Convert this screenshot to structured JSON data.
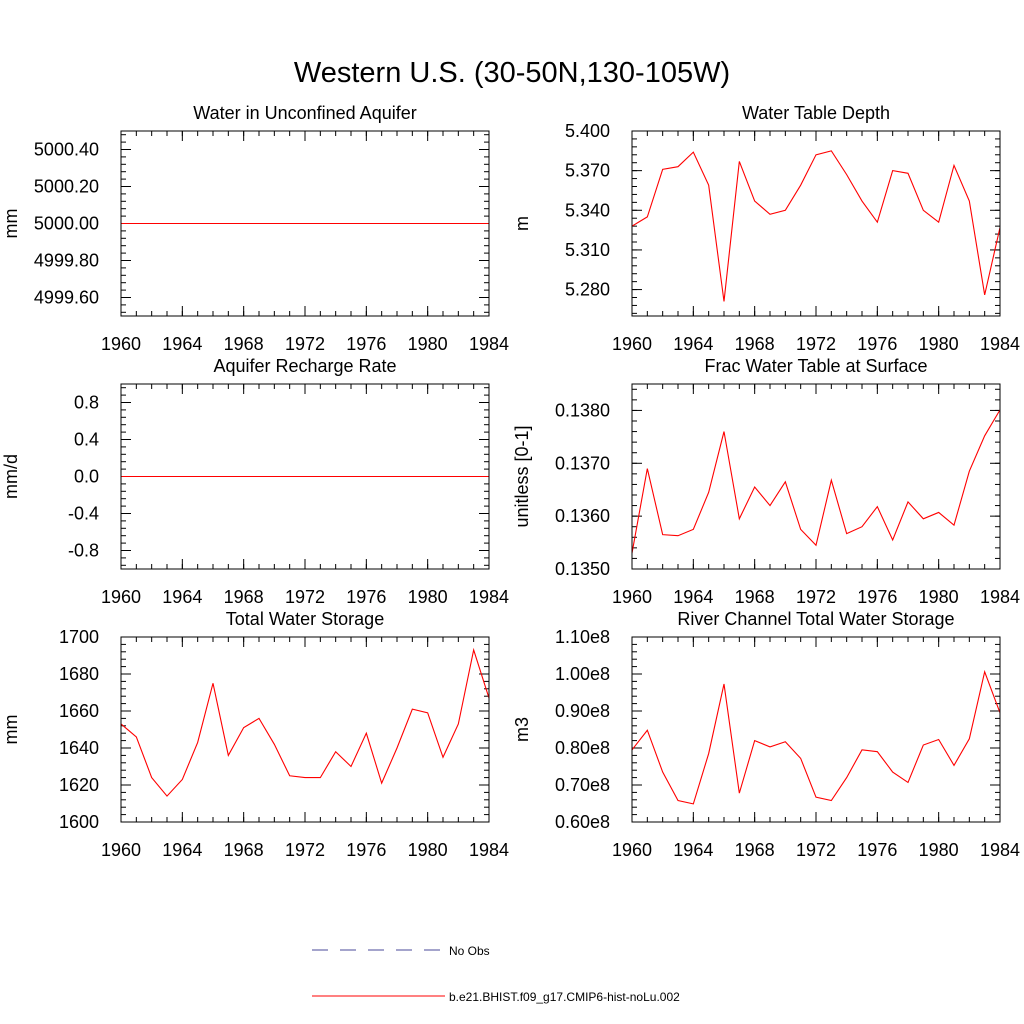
{
  "figure": {
    "title": "Western U.S. (30-50N,130-105W)"
  },
  "legend": {
    "entries": [
      {
        "label": "No Obs",
        "color": "#4a4a9a",
        "dash": true
      },
      {
        "label": "b.e21.BHIST.f09_g17.CMIP6-hist-noLu.002",
        "color": "#ff0000",
        "dash": false
      }
    ]
  },
  "chart_data": [
    {
      "type": "line",
      "title": "Water in Unconfined Aquifer",
      "ylabel": "mm",
      "xlim": [
        1960,
        1984
      ],
      "ylim": [
        4999.5,
        5000.5
      ],
      "xticks": [
        1960,
        1964,
        1968,
        1972,
        1976,
        1980,
        1984
      ],
      "yticks": [
        4999.6,
        4999.8,
        5000.0,
        5000.2,
        5000.4
      ],
      "ytick_labels": [
        "4999.60",
        "4999.80",
        "5000.00",
        "5000.20",
        "5000.40"
      ],
      "series": [
        {
          "color": "#ff0000",
          "x": [
            1960,
            1961,
            1962,
            1963,
            1964,
            1965,
            1966,
            1967,
            1968,
            1969,
            1970,
            1971,
            1972,
            1973,
            1974,
            1975,
            1976,
            1977,
            1978,
            1979,
            1980,
            1981,
            1982,
            1983,
            1984
          ],
          "values": [
            5000.0,
            5000.0,
            5000.0,
            5000.0,
            5000.0,
            5000.0,
            5000.0,
            5000.0,
            5000.0,
            5000.0,
            5000.0,
            5000.0,
            5000.0,
            5000.0,
            5000.0,
            5000.0,
            5000.0,
            5000.0,
            5000.0,
            5000.0,
            5000.0,
            5000.0,
            5000.0,
            5000.0,
            5000.0
          ]
        }
      ]
    },
    {
      "type": "line",
      "title": "Water Table Depth",
      "ylabel": "m",
      "xlim": [
        1960,
        1984
      ],
      "ylim": [
        5.26,
        5.4
      ],
      "xticks": [
        1960,
        1964,
        1968,
        1972,
        1976,
        1980,
        1984
      ],
      "yticks": [
        5.28,
        5.31,
        5.34,
        5.37,
        5.4
      ],
      "ytick_labels": [
        "5.280",
        "5.310",
        "5.340",
        "5.370",
        "5.400"
      ],
      "series": [
        {
          "color": "#ff0000",
          "x": [
            1960,
            1961,
            1962,
            1963,
            1964,
            1965,
            1966,
            1967,
            1968,
            1969,
            1970,
            1971,
            1972,
            1973,
            1974,
            1975,
            1976,
            1977,
            1978,
            1979,
            1980,
            1981,
            1982,
            1983,
            1984
          ],
          "values": [
            5.328,
            5.335,
            5.371,
            5.373,
            5.384,
            5.359,
            5.271,
            5.377,
            5.347,
            5.337,
            5.34,
            5.359,
            5.382,
            5.385,
            5.367,
            5.347,
            5.331,
            5.37,
            5.368,
            5.34,
            5.331,
            5.374,
            5.347,
            5.276,
            5.327
          ]
        }
      ]
    },
    {
      "type": "line",
      "title": "Aquifer Recharge Rate",
      "ylabel": "mm/d",
      "xlim": [
        1960,
        1984
      ],
      "ylim": [
        -1.0,
        1.0
      ],
      "xticks": [
        1960,
        1964,
        1968,
        1972,
        1976,
        1980,
        1984
      ],
      "yticks": [
        -0.8,
        -0.4,
        0.0,
        0.4,
        0.8
      ],
      "ytick_labels": [
        "-0.8",
        "-0.4",
        "0.0",
        "0.4",
        "0.8"
      ],
      "series": [
        {
          "color": "#ff0000",
          "x": [
            1960,
            1961,
            1962,
            1963,
            1964,
            1965,
            1966,
            1967,
            1968,
            1969,
            1970,
            1971,
            1972,
            1973,
            1974,
            1975,
            1976,
            1977,
            1978,
            1979,
            1980,
            1981,
            1982,
            1983,
            1984
          ],
          "values": [
            0,
            0,
            0,
            0,
            0,
            0,
            0,
            0,
            0,
            0,
            0,
            0,
            0,
            0,
            0,
            0,
            0,
            0,
            0,
            0,
            0,
            0,
            0,
            0,
            0
          ]
        }
      ]
    },
    {
      "type": "line",
      "title": "Frac Water Table at Surface",
      "ylabel": "unitless [0-1]",
      "xlim": [
        1960,
        1984
      ],
      "ylim": [
        0.135,
        0.1385
      ],
      "xticks": [
        1960,
        1964,
        1968,
        1972,
        1976,
        1980,
        1984
      ],
      "yticks": [
        0.135,
        0.136,
        0.137,
        0.138
      ],
      "ytick_labels": [
        "0.1350",
        "0.1360",
        "0.1370",
        "0.1380"
      ],
      "series": [
        {
          "color": "#ff0000",
          "x": [
            1960,
            1961,
            1962,
            1963,
            1964,
            1965,
            1966,
            1967,
            1968,
            1969,
            1970,
            1971,
            1972,
            1973,
            1974,
            1975,
            1976,
            1977,
            1978,
            1979,
            1980,
            1981,
            1982,
            1983,
            1984
          ],
          "values": [
            0.1353,
            0.1369,
            0.13565,
            0.13563,
            0.13575,
            0.13645,
            0.1376,
            0.13595,
            0.13655,
            0.1362,
            0.13665,
            0.13575,
            0.13545,
            0.13668,
            0.13567,
            0.1358,
            0.13618,
            0.13555,
            0.13627,
            0.13595,
            0.13607,
            0.13583,
            0.13685,
            0.13752,
            0.13801
          ]
        }
      ]
    },
    {
      "type": "line",
      "title": "Total Water Storage",
      "ylabel": "mm",
      "xlim": [
        1960,
        1984
      ],
      "ylim": [
        1600,
        1700
      ],
      "xticks": [
        1960,
        1964,
        1968,
        1972,
        1976,
        1980,
        1984
      ],
      "yticks": [
        1600,
        1620,
        1640,
        1660,
        1680,
        1700
      ],
      "ytick_labels": [
        "1600",
        "1620",
        "1640",
        "1660",
        "1680",
        "1700"
      ],
      "series": [
        {
          "color": "#ff0000",
          "x": [
            1960,
            1961,
            1962,
            1963,
            1964,
            1965,
            1966,
            1967,
            1968,
            1969,
            1970,
            1971,
            1972,
            1973,
            1974,
            1975,
            1976,
            1977,
            1978,
            1979,
            1980,
            1981,
            1982,
            1983,
            1984
          ],
          "values": [
            1653,
            1646,
            1624,
            1614,
            1623,
            1643,
            1675,
            1636,
            1651,
            1656,
            1642,
            1625,
            1624,
            1624,
            1638,
            1630,
            1648,
            1621,
            1640,
            1661,
            1659,
            1635,
            1653,
            1693,
            1667
          ]
        }
      ]
    },
    {
      "type": "line",
      "title": "River Channel Total Water Storage",
      "ylabel": "m3",
      "xlim": [
        1960,
        1984
      ],
      "ylim": [
        60000000,
        110000000
      ],
      "xticks": [
        1960,
        1964,
        1968,
        1972,
        1976,
        1980,
        1984
      ],
      "yticks": [
        60000000,
        70000000,
        80000000,
        90000000,
        100000000,
        110000000
      ],
      "ytick_labels": [
        "0.60e8",
        "0.70e8",
        "0.80e8",
        "0.90e8",
        "1.00e8",
        "1.10e8"
      ],
      "series": [
        {
          "color": "#ff0000",
          "x": [
            1960,
            1961,
            1962,
            1963,
            1964,
            1965,
            1966,
            1967,
            1968,
            1969,
            1970,
            1971,
            1972,
            1973,
            1974,
            1975,
            1976,
            1977,
            1978,
            1979,
            1980,
            1981,
            1982,
            1983,
            1984
          ],
          "values": [
            79500000,
            84800000,
            73500000,
            65800000,
            64900000,
            78500000,
            97300000,
            67800000,
            82000000,
            80300000,
            81700000,
            77200000,
            66700000,
            65800000,
            72000000,
            79500000,
            79000000,
            73500000,
            70700000,
            80800000,
            82300000,
            75300000,
            82500000,
            100600000,
            89500000
          ]
        }
      ]
    }
  ]
}
